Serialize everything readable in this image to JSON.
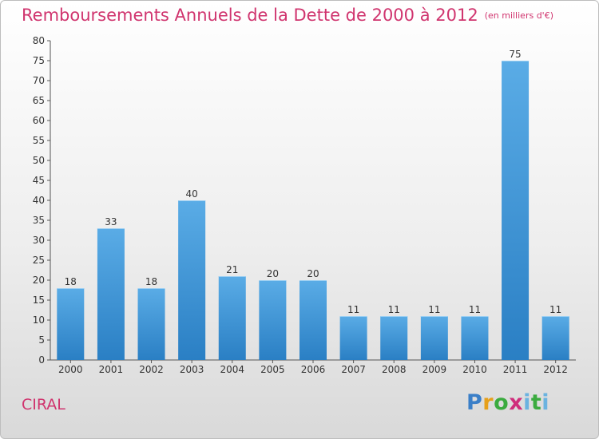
{
  "header": {
    "title": "Remboursements Annuels de la Dette de 2000 à 2012",
    "unit": "(en milliers d'€)"
  },
  "commune": "CIRAL",
  "logo": {
    "text": "Proxiti"
  },
  "chart_data": {
    "type": "bar",
    "title": "Remboursements Annuels de la Dette de 2000 à 2012",
    "subtitle": "(en milliers d'€)",
    "categories": [
      "2000",
      "2001",
      "2002",
      "2003",
      "2004",
      "2005",
      "2006",
      "2007",
      "2008",
      "2009",
      "2010",
      "2011",
      "2012"
    ],
    "values": [
      18,
      33,
      18,
      40,
      21,
      20,
      20,
      11,
      11,
      11,
      11,
      75,
      11
    ],
    "ylim": [
      0,
      80
    ],
    "yticks": [
      0,
      5,
      10,
      15,
      20,
      25,
      30,
      35,
      40,
      45,
      50,
      55,
      60,
      65,
      70,
      75,
      80
    ],
    "grid": false,
    "colors": {
      "bar_top": "#5aace6",
      "bar_bottom": "#2a7fc4",
      "text": "#d0346e"
    }
  }
}
